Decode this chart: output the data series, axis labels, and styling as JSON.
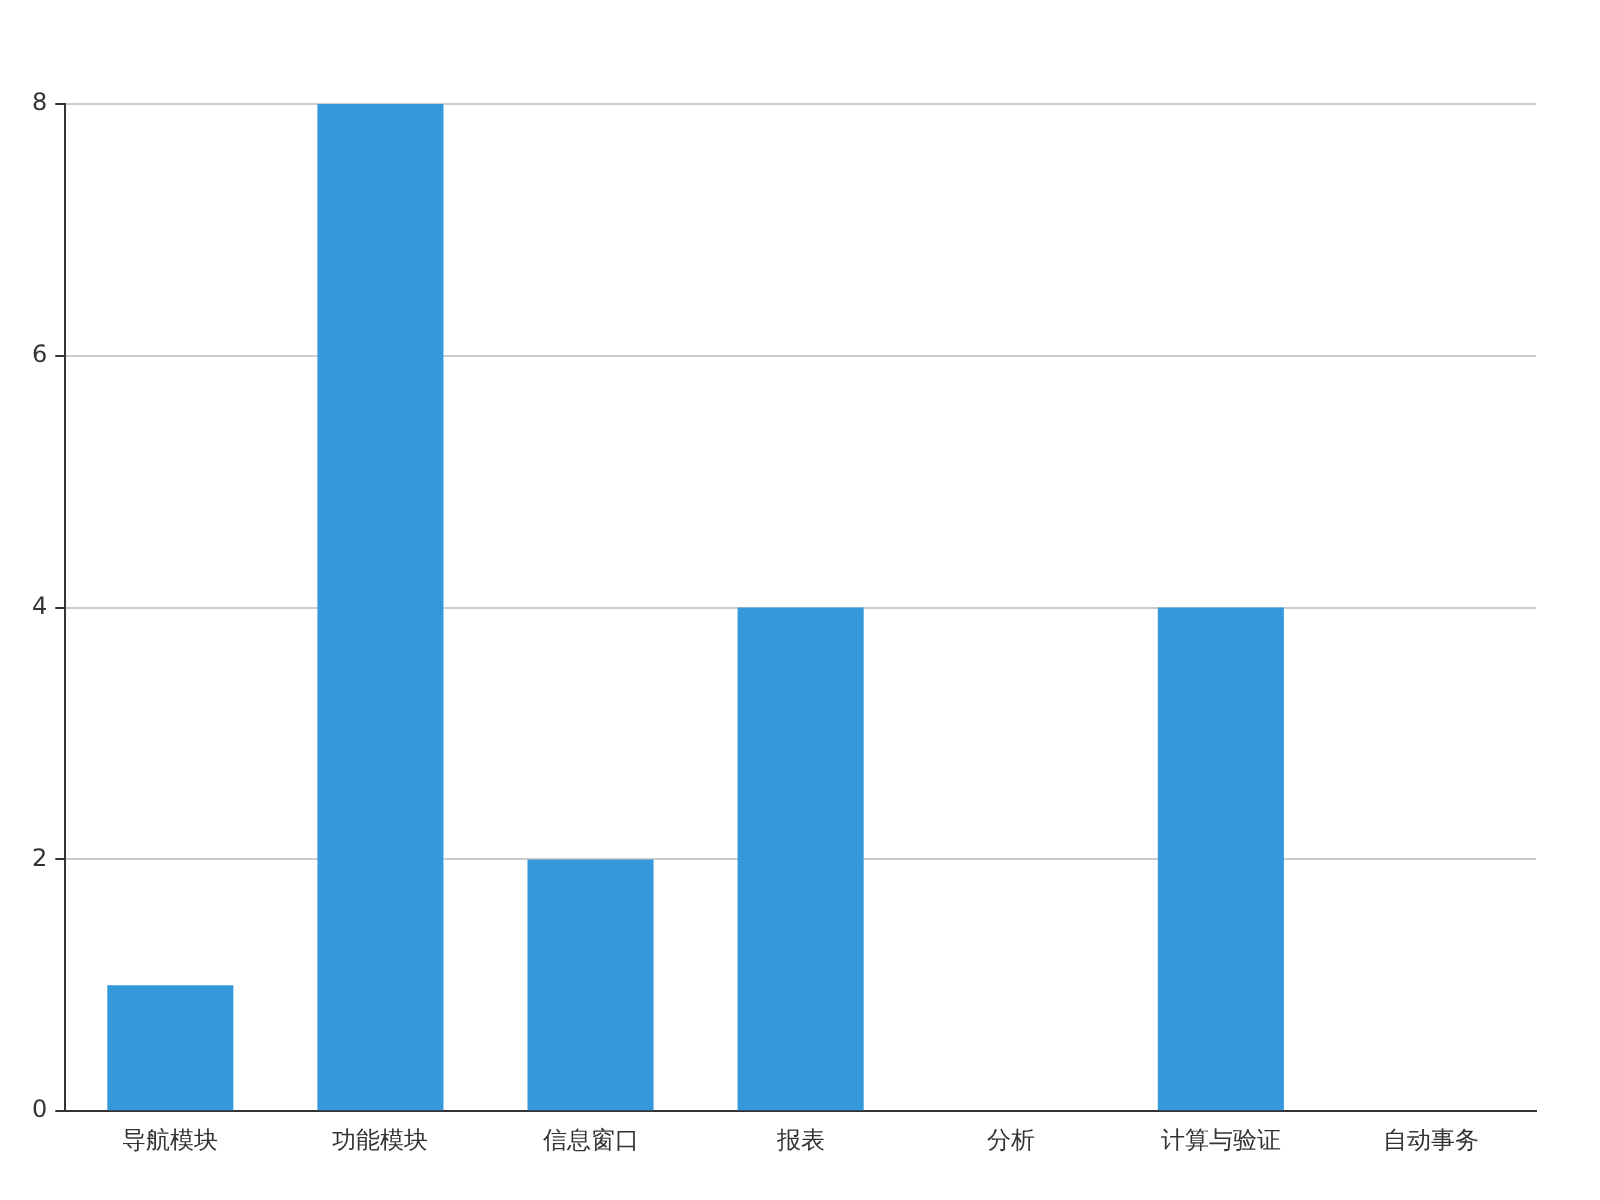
{
  "chart_data": {
    "type": "bar",
    "categories": [
      "导航模块",
      "功能模块",
      "信息窗口",
      "报表",
      "分析",
      "计算与验证",
      "自动事务"
    ],
    "values": [
      1,
      8,
      2,
      4,
      0,
      4,
      0
    ],
    "color": "#3498db",
    "ylim": [
      0,
      8
    ],
    "yticks": [
      0,
      2,
      4,
      6,
      8
    ],
    "grid": "y",
    "legend": false
  }
}
